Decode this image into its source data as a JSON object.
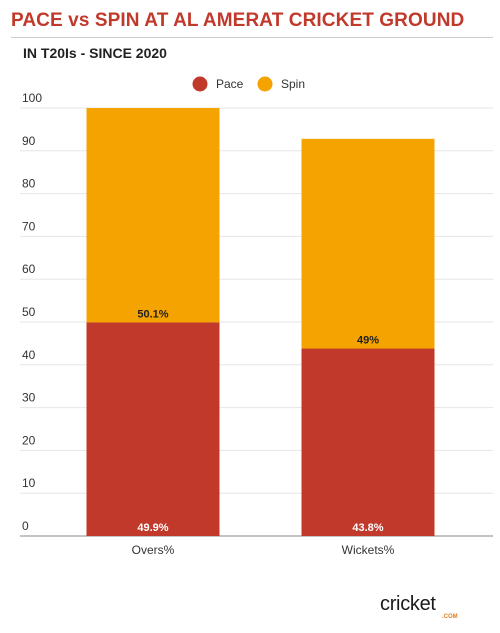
{
  "header": {
    "title": "PACE vs SPIN AT AL AMERAT CRICKET GROUND",
    "subtitle": "IN T20Is - SINCE 2020"
  },
  "colors": {
    "title": "#c0392b",
    "pace": "#c0392b",
    "spin": "#f5a300",
    "grid": "#e6e6e6"
  },
  "logo": {
    "wordmark": "cricket",
    "suffix": ".COM"
  },
  "chart_data": {
    "type": "bar",
    "stacked": true,
    "categories": [
      "Overs%",
      "Wickets%"
    ],
    "series": [
      {
        "name": "Pace",
        "color": "#c0392b",
        "values": [
          49.9,
          43.8
        ],
        "labels": [
          "49.9%",
          "43.8%"
        ]
      },
      {
        "name": "Spin",
        "color": "#f5a300",
        "values": [
          50.1,
          49
        ],
        "labels": [
          "50.1%",
          "49%"
        ]
      }
    ],
    "ylim": [
      0,
      100
    ],
    "yticks": [
      0,
      10,
      20,
      30,
      40,
      50,
      60,
      70,
      80,
      90,
      100
    ],
    "grid": true,
    "legend": "top-center",
    "xlabel": "",
    "ylabel": ""
  }
}
